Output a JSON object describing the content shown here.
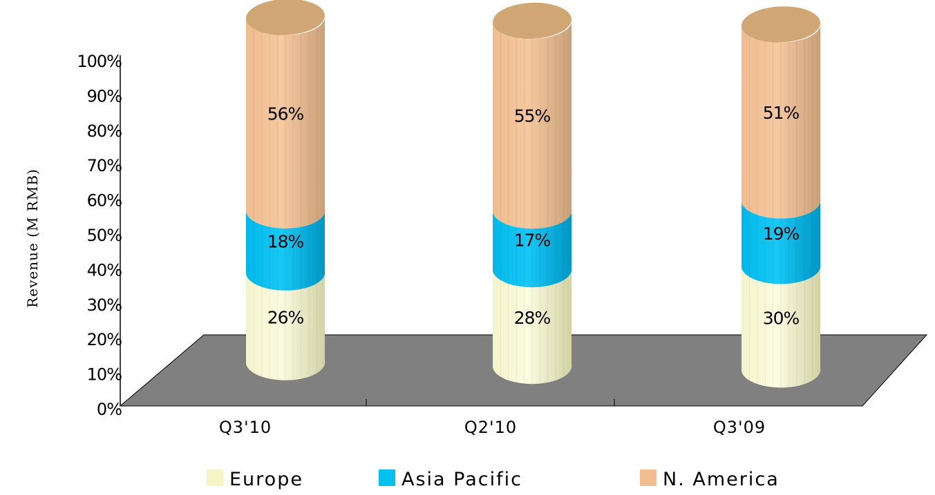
{
  "chart_data": {
    "type": "bar",
    "stacked": true,
    "style": "3d-cylinder",
    "ylabel": "Revenue (M RMB)",
    "categories": [
      "Q3'10",
      "Q2'10",
      "Q3'09"
    ],
    "series": [
      {
        "name": "Europe",
        "values": [
          26,
          28,
          30
        ],
        "labels": [
          "26%",
          "28%",
          "30%"
        ],
        "color": "#f5f5c8"
      },
      {
        "name": "Asia Pacific",
        "values": [
          18,
          17,
          19
        ],
        "labels": [
          "18%",
          "17%",
          "19%"
        ],
        "color": "#00c0f0"
      },
      {
        "name": "N. America",
        "values": [
          56,
          55,
          51
        ],
        "labels": [
          "56%",
          "55%",
          "51%"
        ],
        "color": "#f2be90"
      }
    ],
    "yticks": [
      "0%",
      "10%",
      "20%",
      "30%",
      "40%",
      "50%",
      "60%",
      "70%",
      "80%",
      "90%",
      "100%"
    ],
    "ylim": [
      0,
      100
    ],
    "floor_color": "#808080",
    "legend_position": "bottom"
  }
}
